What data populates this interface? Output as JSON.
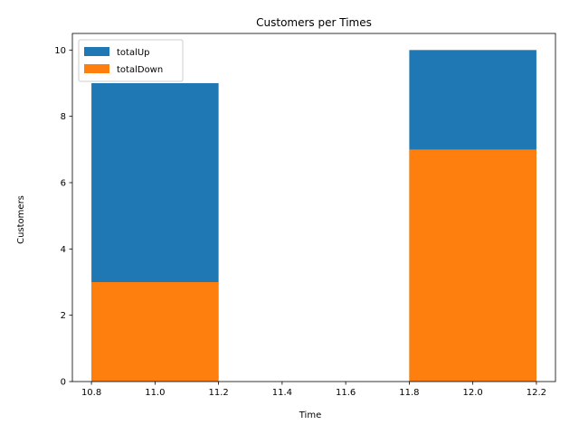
{
  "chart_data": {
    "type": "bar",
    "stacked": false,
    "overlay": true,
    "title": "Customers per Times",
    "xlabel": "Time",
    "ylabel": "Customers",
    "xlim": [
      10.74,
      12.26
    ],
    "ylim": [
      0,
      10.5
    ],
    "xticks": [
      "10.8",
      "11.0",
      "11.2",
      "11.4",
      "11.6",
      "11.8",
      "12.0",
      "12.2"
    ],
    "yticks": [
      "0",
      "2",
      "4",
      "6",
      "8",
      "10"
    ],
    "x": [
      11.0,
      12.0
    ],
    "bar_width": 0.4,
    "series": [
      {
        "name": "totalUp",
        "values": [
          9,
          10
        ],
        "color": "#1f77b4"
      },
      {
        "name": "totalDown",
        "values": [
          3,
          7
        ],
        "color": "#ff7f0e"
      }
    ],
    "legend_position": "top-left",
    "grid": false
  }
}
